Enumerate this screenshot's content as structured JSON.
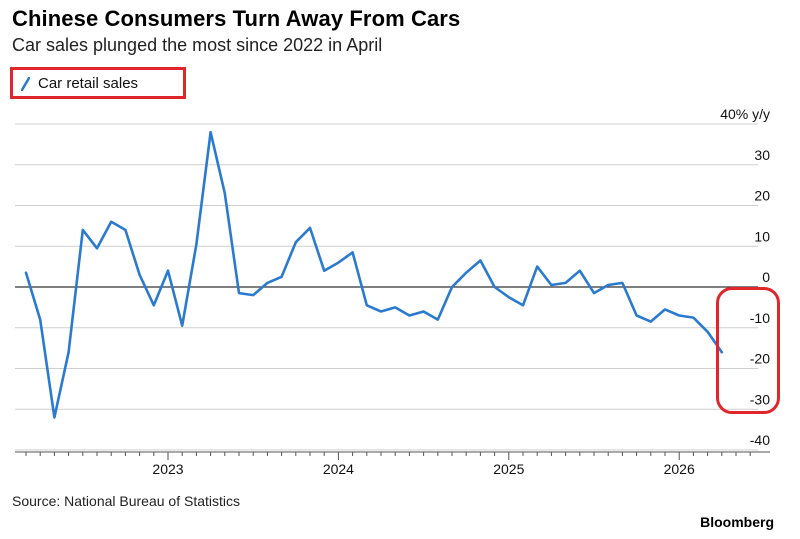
{
  "header": {
    "title": "Chinese Consumers Turn Away From Cars",
    "subtitle": "Car sales plunged the most since 2022 in April"
  },
  "footer": {
    "source": "Source: National Bureau of Statistics",
    "brand": "Bloomberg"
  },
  "colors": {
    "series": "#2a7acf",
    "annotation": "#e0262b",
    "grid": "#cfcfcf",
    "zero_line": "#333333"
  },
  "chart_data": {
    "type": "line",
    "ylabel": "% y/y",
    "ylim": [
      -40,
      40
    ],
    "y_ticks": [
      40,
      30,
      20,
      10,
      0,
      -10,
      -20,
      -30,
      -40
    ],
    "x_ticks": [
      "2023",
      "2024",
      "2025",
      "2026"
    ],
    "grid": true,
    "legend": "top-left",
    "series": [
      {
        "name": "Car retail sales",
        "x": [
          "2022-03",
          "2022-04",
          "2022-05",
          "2022-06",
          "2022-07",
          "2022-08",
          "2022-09",
          "2022-10",
          "2022-11",
          "2022-12",
          "2023-01",
          "2023-02",
          "2023-03",
          "2023-04",
          "2023-05",
          "2023-06",
          "2023-07",
          "2023-08",
          "2023-09",
          "2023-10",
          "2023-11",
          "2023-12",
          "2024-01",
          "2024-02",
          "2024-03",
          "2024-04",
          "2024-05",
          "2024-06",
          "2024-07",
          "2024-08",
          "2024-09",
          "2024-10",
          "2024-11",
          "2024-12",
          "2025-01",
          "2025-02",
          "2025-03",
          "2025-04",
          "2025-05",
          "2025-06",
          "2025-07",
          "2025-08",
          "2025-09",
          "2025-10",
          "2025-11",
          "2025-12",
          "2026-01",
          "2026-02",
          "2026-03",
          "2026-04"
        ],
        "values": [
          3.5,
          -8,
          -32,
          -16,
          14,
          9.5,
          16,
          14,
          3,
          -4.5,
          4,
          -9.5,
          10.5,
          38,
          23,
          -1.5,
          -2,
          1,
          2.5,
          11,
          14.5,
          4,
          6,
          8.5,
          -4.5,
          -6,
          -5,
          -7,
          -6,
          -8,
          0,
          3.5,
          6.5,
          0,
          -2.5,
          -4.5,
          5,
          0.5,
          1,
          4,
          -1.5,
          0.5,
          1,
          -7,
          -8.5,
          -5.5,
          -7,
          -7.5,
          -11,
          -16
        ]
      }
    ]
  }
}
